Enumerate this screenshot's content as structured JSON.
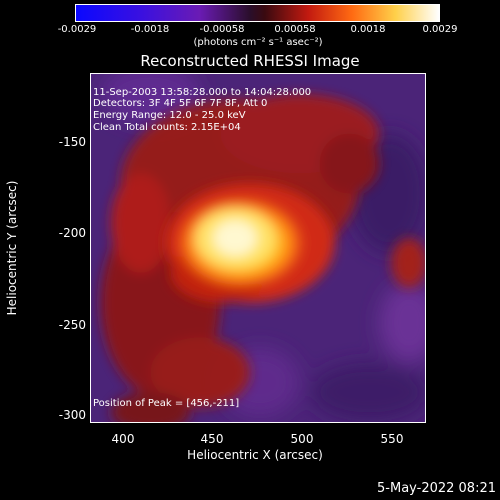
{
  "colorbar": {
    "ticks": [
      "-0.0029",
      "-0.0018",
      "-0.00058",
      "0.00058",
      "0.0018",
      "0.0029"
    ],
    "unit": "(photons cm⁻² s⁻¹ asec⁻²)",
    "vmin": -0.0029,
    "vmax": 0.0029
  },
  "plot": {
    "title": "Reconstructed RHESSI Image",
    "annotations": {
      "time": "11-Sep-2003 13:58:28.000 to 14:04:28.000",
      "detectors": "Detectors: 3F 4F 5F 6F 7F 8F, Att 0",
      "energy": "Energy Range: 12.0 - 25.0 keV",
      "clean": "Clean     Total counts: 2.15E+04",
      "peak": "Position of Peak = [456,-211]"
    },
    "xlabel": "Heliocentric X (arcsec)",
    "ylabel": "Heliocentric Y (arcsec)",
    "xticks": [
      "400",
      "450",
      "500",
      "550"
    ],
    "yticks": [
      "-150",
      "-200",
      "-250",
      "-300"
    ],
    "xlim": [
      373,
      567
    ],
    "ylim": [
      -304,
      -113
    ]
  },
  "footer": {
    "date": "5-May-2022 08:21"
  }
}
